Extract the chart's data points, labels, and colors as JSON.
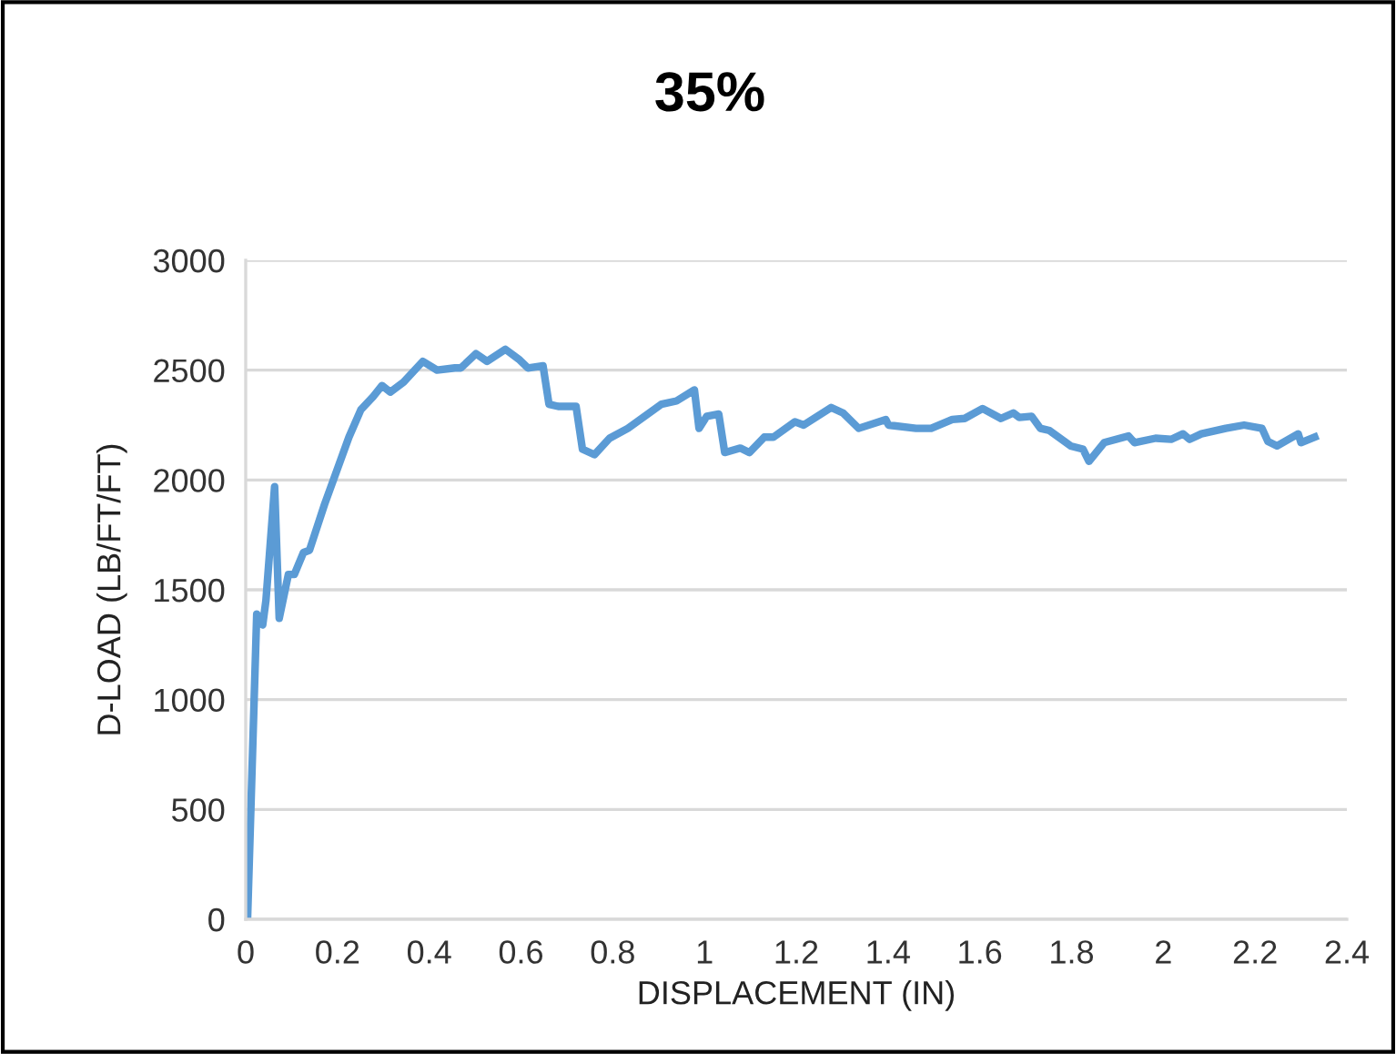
{
  "chart_data": {
    "type": "line",
    "title": "35%",
    "xlabel": "DISPLACEMENT (IN)",
    "ylabel": "D-LOAD (LB/FT/FT)",
    "xlim": [
      0,
      2.4
    ],
    "xticks": [
      0,
      0.2,
      0.4,
      0.6,
      0.8,
      1,
      1.2,
      1.4,
      1.6,
      1.8,
      2,
      2.2,
      2.4
    ],
    "ylim": [
      0,
      3000
    ],
    "yticks": [
      0,
      500,
      1000,
      1500,
      2000,
      2500,
      3000
    ],
    "grid": "y",
    "marker": "none",
    "line_style": "solid",
    "series": [
      {
        "color": "#5b9bd5",
        "x": [
          0.004,
          0.024,
          0.037,
          0.044,
          0.063,
          0.073,
          0.093,
          0.106,
          0.126,
          0.139,
          0.172,
          0.225,
          0.251,
          0.278,
          0.297,
          0.315,
          0.344,
          0.386,
          0.417,
          0.456,
          0.469,
          0.502,
          0.526,
          0.566,
          0.595,
          0.615,
          0.648,
          0.661,
          0.681,
          0.72,
          0.734,
          0.76,
          0.793,
          0.833,
          0.906,
          0.939,
          0.978,
          0.988,
          1.005,
          1.031,
          1.044,
          1.078,
          1.098,
          1.13,
          1.15,
          1.197,
          1.216,
          1.276,
          1.302,
          1.336,
          1.395,
          1.401,
          1.461,
          1.494,
          1.54,
          1.567,
          1.606,
          1.646,
          1.673,
          1.686,
          1.713,
          1.732,
          1.752,
          1.798,
          1.825,
          1.838,
          1.871,
          1.924,
          1.937,
          1.983,
          2.017,
          2.043,
          2.057,
          2.083,
          2.136,
          2.176,
          2.215,
          2.228,
          2.248,
          2.294,
          2.3,
          2.33
        ],
        "values": [
          0,
          1390,
          1340,
          1450,
          1970,
          1370,
          1570,
          1570,
          1670,
          1680,
          1890,
          2195,
          2320,
          2380,
          2430,
          2400,
          2445,
          2540,
          2500,
          2510,
          2510,
          2575,
          2540,
          2595,
          2550,
          2510,
          2520,
          2345,
          2335,
          2335,
          2140,
          2115,
          2190,
          2235,
          2345,
          2360,
          2410,
          2235,
          2290,
          2300,
          2125,
          2145,
          2125,
          2195,
          2195,
          2265,
          2250,
          2330,
          2305,
          2235,
          2275,
          2250,
          2235,
          2235,
          2275,
          2280,
          2325,
          2280,
          2305,
          2285,
          2290,
          2235,
          2225,
          2155,
          2140,
          2085,
          2170,
          2200,
          2170,
          2190,
          2185,
          2210,
          2185,
          2210,
          2235,
          2250,
          2235,
          2175,
          2155,
          2210,
          2170,
          2195
        ]
      }
    ]
  }
}
